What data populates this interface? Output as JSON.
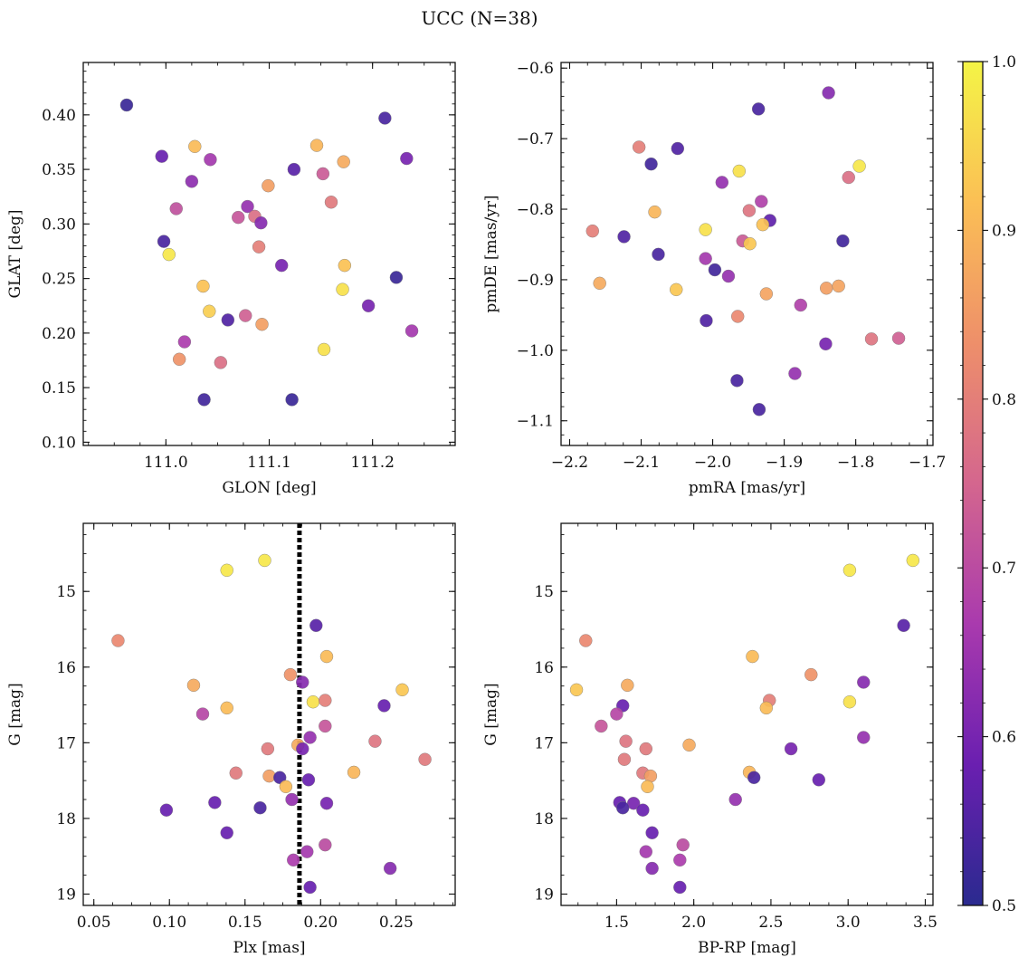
{
  "title": "UCC (N=38)",
  "colorbar": {
    "min": 0.5,
    "max": 1.0,
    "ticks": [
      0.5,
      0.6,
      0.7,
      0.8,
      0.9,
      1.0
    ],
    "tick_labels": [
      "0.5",
      "0.6",
      "0.7",
      "0.8",
      "0.9",
      "1.0"
    ],
    "colormap": "plasma",
    "colors": [
      "#2a2a8f",
      "#6a1fb0",
      "#a93aae",
      "#d4668e",
      "#ee8f6a",
      "#fbbf55",
      "#f4f446"
    ]
  },
  "chart_data": [
    {
      "type": "scatter",
      "xlabel": "GLON [deg]",
      "ylabel": "GLAT [deg]",
      "xlim": [
        110.92,
        111.28
      ],
      "ylim": [
        0.097,
        0.448
      ],
      "xticks": [
        111.0,
        111.1,
        111.2
      ],
      "xtick_labels": [
        "111.0",
        "111.1",
        "111.2"
      ],
      "yticks": [
        0.1,
        0.15,
        0.2,
        0.25,
        0.3,
        0.35,
        0.4
      ],
      "ytick_labels": [
        "0.10",
        "0.15",
        "0.20",
        "0.25",
        "0.30",
        "0.35",
        "0.40"
      ],
      "y_inverted": false,
      "vline": null,
      "points": [
        {
          "x": 110.962,
          "y": 0.409,
          "c": 0.52
        },
        {
          "x": 110.996,
          "y": 0.362,
          "c": 0.58
        },
        {
          "x": 111.028,
          "y": 0.371,
          "c": 0.91
        },
        {
          "x": 111.043,
          "y": 0.359,
          "c": 0.66
        },
        {
          "x": 111.025,
          "y": 0.339,
          "c": 0.63
        },
        {
          "x": 111.01,
          "y": 0.314,
          "c": 0.71
        },
        {
          "x": 110.998,
          "y": 0.284,
          "c": 0.54
        },
        {
          "x": 111.003,
          "y": 0.272,
          "c": 0.98
        },
        {
          "x": 111.07,
          "y": 0.306,
          "c": 0.72
        },
        {
          "x": 111.079,
          "y": 0.316,
          "c": 0.64
        },
        {
          "x": 111.086,
          "y": 0.307,
          "c": 0.77
        },
        {
          "x": 111.092,
          "y": 0.301,
          "c": 0.62
        },
        {
          "x": 111.09,
          "y": 0.279,
          "c": 0.8
        },
        {
          "x": 111.099,
          "y": 0.335,
          "c": 0.86
        },
        {
          "x": 111.124,
          "y": 0.35,
          "c": 0.56
        },
        {
          "x": 111.146,
          "y": 0.372,
          "c": 0.9
        },
        {
          "x": 111.152,
          "y": 0.346,
          "c": 0.73
        },
        {
          "x": 111.16,
          "y": 0.32,
          "c": 0.79
        },
        {
          "x": 111.172,
          "y": 0.357,
          "c": 0.88
        },
        {
          "x": 111.212,
          "y": 0.397,
          "c": 0.54
        },
        {
          "x": 111.233,
          "y": 0.36,
          "c": 0.6
        },
        {
          "x": 111.112,
          "y": 0.262,
          "c": 0.6
        },
        {
          "x": 111.173,
          "y": 0.262,
          "c": 0.92
        },
        {
          "x": 111.171,
          "y": 0.24,
          "c": 0.97
        },
        {
          "x": 111.036,
          "y": 0.243,
          "c": 0.92
        },
        {
          "x": 111.042,
          "y": 0.22,
          "c": 0.94
        },
        {
          "x": 111.06,
          "y": 0.212,
          "c": 0.55
        },
        {
          "x": 111.077,
          "y": 0.216,
          "c": 0.74
        },
        {
          "x": 111.093,
          "y": 0.208,
          "c": 0.86
        },
        {
          "x": 111.223,
          "y": 0.251,
          "c": 0.52
        },
        {
          "x": 111.196,
          "y": 0.225,
          "c": 0.6
        },
        {
          "x": 111.238,
          "y": 0.202,
          "c": 0.66
        },
        {
          "x": 111.018,
          "y": 0.192,
          "c": 0.67
        },
        {
          "x": 111.153,
          "y": 0.185,
          "c": 0.97
        },
        {
          "x": 111.013,
          "y": 0.176,
          "c": 0.84
        },
        {
          "x": 111.053,
          "y": 0.173,
          "c": 0.77
        },
        {
          "x": 111.037,
          "y": 0.139,
          "c": 0.53
        },
        {
          "x": 111.122,
          "y": 0.139,
          "c": 0.52
        }
      ]
    },
    {
      "type": "scatter",
      "xlabel": "pmRA [mas/yr]",
      "ylabel": "pmDE [mas/yr]",
      "xlim": [
        -2.212,
        -1.692
      ],
      "ylim": [
        -1.135,
        -0.592
      ],
      "xticks": [
        -2.2,
        -2.1,
        -2.0,
        -1.9,
        -1.8,
        -1.7
      ],
      "xtick_labels": [
        "−2.2",
        "−2.1",
        "−2.0",
        "−1.9",
        "−1.8",
        "−1.7"
      ],
      "yticks": [
        -1.1,
        -1.0,
        -0.9,
        -0.8,
        -0.7,
        -0.6
      ],
      "ytick_labels": [
        "−1.1",
        "−1.0",
        "−0.9",
        "−0.8",
        "−0.7",
        "−0.6"
      ],
      "y_inverted": false,
      "vline": null,
      "points": [
        {
          "x": -1.838,
          "y": -0.635,
          "c": 0.62
        },
        {
          "x": -1.936,
          "y": -0.658,
          "c": 0.54
        },
        {
          "x": -2.103,
          "y": -0.712,
          "c": 0.8
        },
        {
          "x": -2.049,
          "y": -0.714,
          "c": 0.55
        },
        {
          "x": -2.086,
          "y": -0.736,
          "c": 0.53
        },
        {
          "x": -1.963,
          "y": -0.746,
          "c": 0.97
        },
        {
          "x": -1.795,
          "y": -0.739,
          "c": 0.98
        },
        {
          "x": -1.81,
          "y": -0.755,
          "c": 0.77
        },
        {
          "x": -1.987,
          "y": -0.762,
          "c": 0.64
        },
        {
          "x": -1.932,
          "y": -0.789,
          "c": 0.68
        },
        {
          "x": -2.081,
          "y": -0.804,
          "c": 0.9
        },
        {
          "x": -1.949,
          "y": -0.802,
          "c": 0.78
        },
        {
          "x": -1.92,
          "y": -0.816,
          "c": 0.57
        },
        {
          "x": -1.93,
          "y": -0.822,
          "c": 0.92
        },
        {
          "x": -2.168,
          "y": -0.831,
          "c": 0.8
        },
        {
          "x": -2.01,
          "y": -0.829,
          "c": 0.97
        },
        {
          "x": -2.124,
          "y": -0.839,
          "c": 0.55
        },
        {
          "x": -1.958,
          "y": -0.845,
          "c": 0.73
        },
        {
          "x": -1.948,
          "y": -0.849,
          "c": 0.93
        },
        {
          "x": -1.818,
          "y": -0.845,
          "c": 0.53
        },
        {
          "x": -2.076,
          "y": -0.864,
          "c": 0.54
        },
        {
          "x": -2.01,
          "y": -0.87,
          "c": 0.66
        },
        {
          "x": -1.997,
          "y": -0.886,
          "c": 0.53
        },
        {
          "x": -1.978,
          "y": -0.895,
          "c": 0.64
        },
        {
          "x": -2.158,
          "y": -0.905,
          "c": 0.88
        },
        {
          "x": -2.051,
          "y": -0.914,
          "c": 0.93
        },
        {
          "x": -1.841,
          "y": -0.912,
          "c": 0.86
        },
        {
          "x": -1.824,
          "y": -0.909,
          "c": 0.87
        },
        {
          "x": -1.925,
          "y": -0.92,
          "c": 0.87
        },
        {
          "x": -1.877,
          "y": -0.936,
          "c": 0.68
        },
        {
          "x": -2.009,
          "y": -0.958,
          "c": 0.55
        },
        {
          "x": -1.965,
          "y": -0.952,
          "c": 0.82
        },
        {
          "x": -1.778,
          "y": -0.984,
          "c": 0.78
        },
        {
          "x": -1.74,
          "y": -0.983,
          "c": 0.74
        },
        {
          "x": -1.842,
          "y": -0.991,
          "c": 0.6
        },
        {
          "x": -1.885,
          "y": -1.033,
          "c": 0.64
        },
        {
          "x": -1.966,
          "y": -1.043,
          "c": 0.54
        },
        {
          "x": -1.935,
          "y": -1.084,
          "c": 0.54
        }
      ]
    },
    {
      "type": "scatter",
      "xlabel": "Plx [mas]",
      "ylabel": "G [mag]",
      "xlim": [
        0.043,
        0.289
      ],
      "ylim": [
        19.15,
        14.1
      ],
      "xticks": [
        0.05,
        0.1,
        0.15,
        0.2,
        0.25
      ],
      "xtick_labels": [
        "0.05",
        "0.10",
        "0.15",
        "0.20",
        "0.25"
      ],
      "yticks": [
        15,
        16,
        17,
        18,
        19
      ],
      "ytick_labels": [
        "15",
        "16",
        "17",
        "18",
        "19"
      ],
      "y_inverted": true,
      "vline": 0.186,
      "points": [
        {
          "x": 0.163,
          "y": 14.59,
          "c": 0.98
        },
        {
          "x": 0.138,
          "y": 14.72,
          "c": 0.98
        },
        {
          "x": 0.066,
          "y": 15.65,
          "c": 0.82
        },
        {
          "x": 0.197,
          "y": 15.45,
          "c": 0.56
        },
        {
          "x": 0.204,
          "y": 15.86,
          "c": 0.91
        },
        {
          "x": 0.18,
          "y": 16.1,
          "c": 0.84
        },
        {
          "x": 0.188,
          "y": 16.2,
          "c": 0.62
        },
        {
          "x": 0.116,
          "y": 16.24,
          "c": 0.88
        },
        {
          "x": 0.254,
          "y": 16.3,
          "c": 0.93
        },
        {
          "x": 0.195,
          "y": 16.46,
          "c": 0.97
        },
        {
          "x": 0.203,
          "y": 16.44,
          "c": 0.8
        },
        {
          "x": 0.242,
          "y": 16.51,
          "c": 0.58
        },
        {
          "x": 0.138,
          "y": 16.54,
          "c": 0.91
        },
        {
          "x": 0.122,
          "y": 16.62,
          "c": 0.69
        },
        {
          "x": 0.203,
          "y": 16.78,
          "c": 0.72
        },
        {
          "x": 0.193,
          "y": 16.93,
          "c": 0.64
        },
        {
          "x": 0.236,
          "y": 16.98,
          "c": 0.78
        },
        {
          "x": 0.185,
          "y": 17.03,
          "c": 0.88
        },
        {
          "x": 0.165,
          "y": 17.08,
          "c": 0.79
        },
        {
          "x": 0.188,
          "y": 17.08,
          "c": 0.6
        },
        {
          "x": 0.269,
          "y": 17.22,
          "c": 0.79
        },
        {
          "x": 0.144,
          "y": 17.4,
          "c": 0.79
        },
        {
          "x": 0.222,
          "y": 17.39,
          "c": 0.9
        },
        {
          "x": 0.166,
          "y": 17.44,
          "c": 0.86
        },
        {
          "x": 0.173,
          "y": 17.46,
          "c": 0.54
        },
        {
          "x": 0.192,
          "y": 17.49,
          "c": 0.58
        },
        {
          "x": 0.177,
          "y": 17.58,
          "c": 0.91
        },
        {
          "x": 0.181,
          "y": 17.75,
          "c": 0.64
        },
        {
          "x": 0.13,
          "y": 17.79,
          "c": 0.58
        },
        {
          "x": 0.204,
          "y": 17.8,
          "c": 0.6
        },
        {
          "x": 0.16,
          "y": 17.86,
          "c": 0.54
        },
        {
          "x": 0.098,
          "y": 17.89,
          "c": 0.58
        },
        {
          "x": 0.138,
          "y": 18.19,
          "c": 0.58
        },
        {
          "x": 0.203,
          "y": 18.35,
          "c": 0.7
        },
        {
          "x": 0.191,
          "y": 18.44,
          "c": 0.66
        },
        {
          "x": 0.182,
          "y": 18.55,
          "c": 0.67
        },
        {
          "x": 0.246,
          "y": 18.66,
          "c": 0.62
        },
        {
          "x": 0.193,
          "y": 18.91,
          "c": 0.58
        }
      ]
    },
    {
      "type": "scatter",
      "xlabel": "BP-RP [mag]",
      "ylabel": "G [mag]",
      "xlim": [
        1.14,
        3.55
      ],
      "ylim": [
        19.15,
        14.1
      ],
      "xticks": [
        1.5,
        2.0,
        2.5,
        3.0,
        3.5
      ],
      "xtick_labels": [
        "1.5",
        "2.0",
        "2.5",
        "3.0",
        "3.5"
      ],
      "yticks": [
        15,
        16,
        17,
        18,
        19
      ],
      "ytick_labels": [
        "15",
        "16",
        "17",
        "18",
        "19"
      ],
      "y_inverted": true,
      "vline": null,
      "points": [
        {
          "x": 3.42,
          "y": 14.59,
          "c": 0.98
        },
        {
          "x": 3.01,
          "y": 14.72,
          "c": 0.98
        },
        {
          "x": 1.3,
          "y": 15.65,
          "c": 0.82
        },
        {
          "x": 3.36,
          "y": 15.45,
          "c": 0.56
        },
        {
          "x": 2.38,
          "y": 15.86,
          "c": 0.91
        },
        {
          "x": 2.76,
          "y": 16.1,
          "c": 0.84
        },
        {
          "x": 3.1,
          "y": 16.2,
          "c": 0.62
        },
        {
          "x": 1.57,
          "y": 16.24,
          "c": 0.88
        },
        {
          "x": 1.24,
          "y": 16.3,
          "c": 0.93
        },
        {
          "x": 3.01,
          "y": 16.46,
          "c": 0.97
        },
        {
          "x": 2.49,
          "y": 16.44,
          "c": 0.8
        },
        {
          "x": 1.54,
          "y": 16.51,
          "c": 0.58
        },
        {
          "x": 2.47,
          "y": 16.54,
          "c": 0.91
        },
        {
          "x": 1.5,
          "y": 16.62,
          "c": 0.69
        },
        {
          "x": 1.4,
          "y": 16.78,
          "c": 0.72
        },
        {
          "x": 3.1,
          "y": 16.93,
          "c": 0.64
        },
        {
          "x": 1.56,
          "y": 16.98,
          "c": 0.78
        },
        {
          "x": 1.97,
          "y": 17.03,
          "c": 0.88
        },
        {
          "x": 1.69,
          "y": 17.08,
          "c": 0.79
        },
        {
          "x": 2.63,
          "y": 17.08,
          "c": 0.6
        },
        {
          "x": 1.55,
          "y": 17.22,
          "c": 0.79
        },
        {
          "x": 1.67,
          "y": 17.4,
          "c": 0.79
        },
        {
          "x": 2.36,
          "y": 17.39,
          "c": 0.9
        },
        {
          "x": 1.72,
          "y": 17.44,
          "c": 0.86
        },
        {
          "x": 2.39,
          "y": 17.46,
          "c": 0.54
        },
        {
          "x": 2.81,
          "y": 17.49,
          "c": 0.58
        },
        {
          "x": 1.7,
          "y": 17.58,
          "c": 0.91
        },
        {
          "x": 2.27,
          "y": 17.75,
          "c": 0.64
        },
        {
          "x": 1.52,
          "y": 17.79,
          "c": 0.58
        },
        {
          "x": 1.61,
          "y": 17.8,
          "c": 0.6
        },
        {
          "x": 1.54,
          "y": 17.86,
          "c": 0.54
        },
        {
          "x": 1.67,
          "y": 17.89,
          "c": 0.58
        },
        {
          "x": 1.73,
          "y": 18.19,
          "c": 0.58
        },
        {
          "x": 1.93,
          "y": 18.35,
          "c": 0.7
        },
        {
          "x": 1.69,
          "y": 18.44,
          "c": 0.66
        },
        {
          "x": 1.91,
          "y": 18.55,
          "c": 0.67
        },
        {
          "x": 1.73,
          "y": 18.66,
          "c": 0.62
        },
        {
          "x": 1.91,
          "y": 18.91,
          "c": 0.58
        }
      ]
    }
  ]
}
